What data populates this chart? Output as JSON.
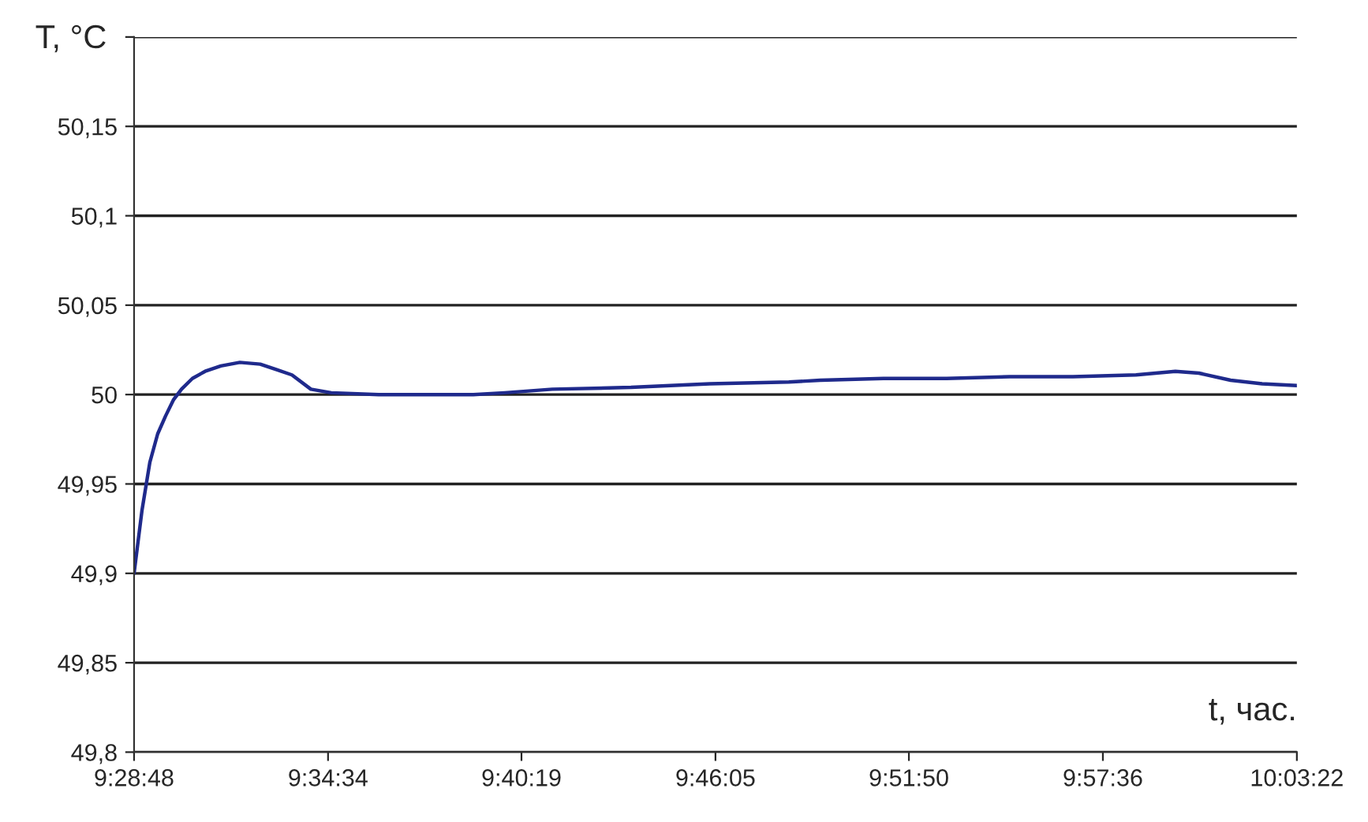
{
  "chart_data": {
    "type": "line",
    "xlabel": "t, час.",
    "ylabel": "T, °C",
    "x": [
      9.48,
      9.4839,
      9.4878,
      9.4917,
      9.4956,
      9.4995,
      9.5035,
      9.5089,
      9.5152,
      9.523,
      9.5324,
      9.5425,
      9.5504,
      9.5582,
      9.5676,
      9.5777,
      9.6012,
      9.6246,
      9.6481,
      9.6637,
      9.6872,
      9.7262,
      9.7653,
      9.8044,
      9.82,
      9.8513,
      9.8826,
      9.9138,
      9.9451,
      9.9764,
      9.9959,
      10.0076,
      10.0233,
      10.0389,
      10.0561
    ],
    "series": [
      {
        "color": "#1f2a8c",
        "values": [
          49.9,
          49.935,
          49.962,
          49.978,
          49.988,
          49.997,
          50.003,
          50.009,
          50.013,
          50.016,
          50.018,
          50.017,
          50.014,
          50.011,
          50.003,
          50.001,
          50.0,
          50.0,
          50.0,
          50.001,
          50.003,
          50.004,
          50.006,
          50.007,
          50.008,
          50.009,
          50.009,
          50.01,
          50.01,
          50.011,
          50.013,
          50.012,
          50.008,
          50.006,
          50.005
        ]
      }
    ],
    "xlim": [
      9.48,
      10.056111
    ],
    "xticks": [
      {
        "value": 9.48,
        "label": "9:28:48"
      },
      {
        "value": 9.576111,
        "label": "9:34:34"
      },
      {
        "value": 9.671944,
        "label": "9:40:19"
      },
      {
        "value": 9.768056,
        "label": "9:46:05"
      },
      {
        "value": 9.863889,
        "label": "9:51:50"
      },
      {
        "value": 9.96,
        "label": "9:57:36"
      },
      {
        "value": 10.056111,
        "label": "10:03:22"
      }
    ],
    "ylim": [
      49.8,
      50.2
    ],
    "yticks": [
      {
        "value": 49.8,
        "label": "49,8"
      },
      {
        "value": 49.85,
        "label": "49,85"
      },
      {
        "value": 49.9,
        "label": "49,9"
      },
      {
        "value": 49.95,
        "label": "49,95"
      },
      {
        "value": 50,
        "label": "50"
      },
      {
        "value": 50.05,
        "label": "50,05"
      },
      {
        "value": 50.1,
        "label": "50,1"
      },
      {
        "value": 50.15,
        "label": "50,15"
      },
      {
        "value": 50.2,
        "label": null
      }
    ],
    "grid": "y",
    "legend": false,
    "marker": "none",
    "line_style": "solid"
  }
}
